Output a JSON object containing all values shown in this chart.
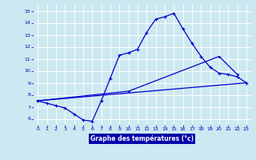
{
  "bg_color": "#cce8f0",
  "grid_color": "#ffffff",
  "line_color": "#0000cc",
  "xlabel": "Graphe des températures (°c)",
  "xlabel_bg": "#0000aa",
  "xlabel_color": "#ffffff",
  "xlim": [
    -0.5,
    23.5
  ],
  "ylim": [
    5.5,
    15.5
  ],
  "yticks": [
    6,
    7,
    8,
    9,
    10,
    11,
    12,
    13,
    14,
    15
  ],
  "xticks": [
    0,
    1,
    2,
    3,
    4,
    5,
    6,
    7,
    8,
    9,
    10,
    11,
    12,
    13,
    14,
    15,
    16,
    17,
    18,
    19,
    20,
    21,
    22,
    23
  ],
  "line1_x": [
    0,
    1,
    2,
    3,
    4,
    5,
    6,
    7,
    8,
    9,
    10,
    11,
    12,
    13,
    14,
    15,
    16,
    17,
    18,
    19,
    20,
    21,
    22,
    23
  ],
  "line1_y": [
    7.5,
    7.3,
    7.1,
    6.9,
    6.4,
    5.9,
    5.8,
    7.5,
    9.4,
    11.3,
    11.5,
    11.8,
    13.2,
    14.3,
    14.5,
    14.8,
    13.5,
    12.3,
    11.2,
    10.3,
    9.8,
    9.7,
    9.5,
    9.0
  ],
  "line2_x": [
    0,
    23
  ],
  "line2_y": [
    7.5,
    9.0
  ],
  "line3_x": [
    0,
    10,
    20,
    22
  ],
  "line3_y": [
    7.5,
    8.3,
    11.2,
    9.7
  ]
}
